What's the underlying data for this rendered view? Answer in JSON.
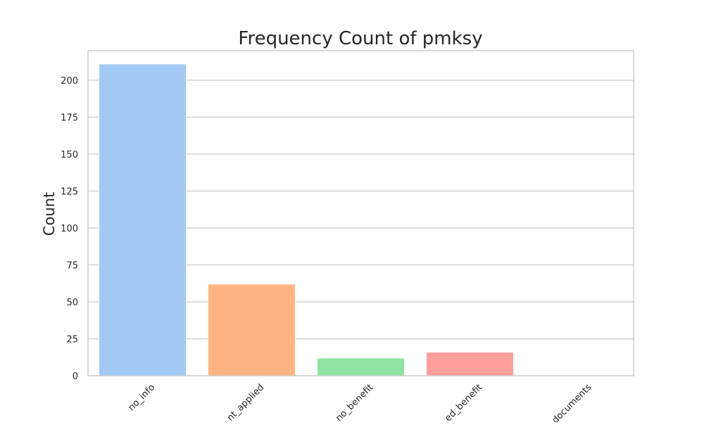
{
  "chart_data": {
    "type": "bar",
    "title": "Frequency Count of pmksy",
    "xlabel": "",
    "ylabel": "Count",
    "categories": [
      "no_info",
      "not_applied",
      "no_benefit",
      "availed_benefit",
      "no_documents"
    ],
    "visible_tick_labels": [
      "no_info",
      "nt_applied",
      "no_benefit",
      "ed_benefit",
      "documents"
    ],
    "values": [
      211,
      62,
      12,
      16,
      0
    ],
    "ylim": [
      0,
      220
    ],
    "yticks": [
      0,
      25,
      50,
      75,
      100,
      125,
      150,
      175,
      200
    ],
    "grid": "horizontal",
    "colors": [
      "#a1c9f4",
      "#ffb482",
      "#8de5a1",
      "#ff9f9b",
      "#d0bbff"
    ]
  }
}
